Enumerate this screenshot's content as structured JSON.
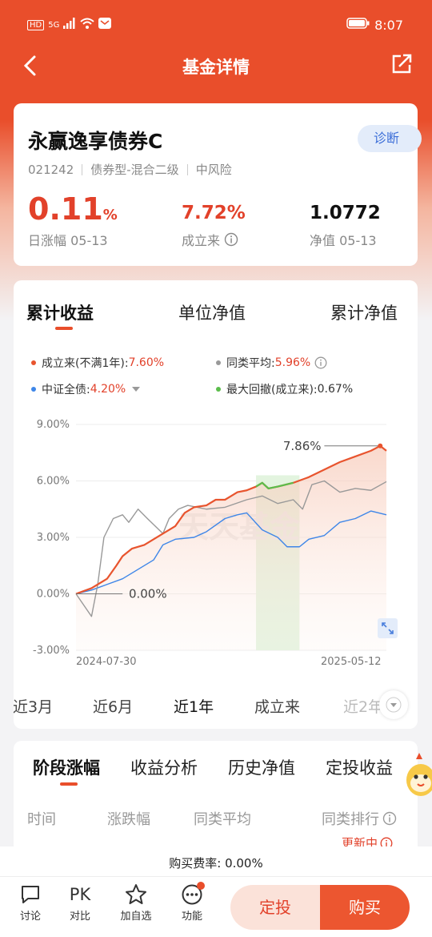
{
  "status": {
    "sim": "HD",
    "sig": "5G",
    "time": "8:07"
  },
  "nav": {
    "title": "基金详情"
  },
  "fund": {
    "name": "永赢逸享债券C",
    "badge": "诊断",
    "code": "021242",
    "type": "债券型-混合二级",
    "risk": "中风险",
    "daily_value": "0.11",
    "daily_unit": "%",
    "daily_label": "日涨幅 05-13",
    "since_value": "7.72%",
    "since_label": "成立来",
    "nav_value": "1.0772",
    "nav_label": "净值 05-13"
  },
  "chart_tabs": [
    "累计收益",
    "单位净值",
    "累计净值"
  ],
  "legend": [
    {
      "label": "成立来(不满1年):",
      "value": "7.60%",
      "color": "#e8542e"
    },
    {
      "label": "同类平均:",
      "value": "5.96%",
      "color": "#999999"
    },
    {
      "label": "中证全债:",
      "value": "4.20%",
      "color": "#3e86e8"
    },
    {
      "label": "最大回撤(成立来):",
      "value": "0.67%",
      "color": "#5bbd4b"
    }
  ],
  "chart_data": {
    "type": "line",
    "ylim": [
      -3,
      9
    ],
    "yticks": [
      "9.00%",
      "6.00%",
      "3.00%",
      "0.00%",
      "-3.00%"
    ],
    "x_start": "2024-07-30",
    "x_end": "2025-05-12",
    "watermark": "天天基金",
    "start_label": "0.00%",
    "peak_label": "7.86%",
    "series": [
      {
        "name": "成立来(不满1年)",
        "color": "#e8542e",
        "x": [
          0,
          0.05,
          0.1,
          0.13,
          0.15,
          0.18,
          0.22,
          0.28,
          0.32,
          0.35,
          0.38,
          0.42,
          0.45,
          0.48,
          0.5,
          0.52,
          0.55,
          0.58,
          0.6,
          0.62,
          0.65,
          0.7,
          0.75,
          0.8,
          0.85,
          0.9,
          0.95,
          0.98,
          1.0
        ],
        "y": [
          0,
          0.3,
          0.8,
          1.5,
          2.0,
          2.4,
          2.6,
          3.2,
          3.6,
          4.3,
          4.6,
          4.7,
          5.0,
          5.0,
          5.2,
          5.4,
          5.5,
          5.7,
          5.9,
          5.6,
          5.7,
          5.9,
          6.2,
          6.6,
          7.0,
          7.3,
          7.6,
          7.86,
          7.6
        ]
      },
      {
        "name": "同类平均",
        "color": "#999999",
        "x": [
          0,
          0.05,
          0.07,
          0.09,
          0.12,
          0.15,
          0.17,
          0.2,
          0.23,
          0.28,
          0.3,
          0.33,
          0.36,
          0.42,
          0.48,
          0.55,
          0.6,
          0.65,
          0.7,
          0.73,
          0.76,
          0.8,
          0.85,
          0.9,
          0.95,
          1.0
        ],
        "y": [
          0,
          -1.2,
          0.5,
          3.0,
          4.0,
          4.2,
          3.8,
          4.5,
          4.0,
          3.2,
          4.0,
          4.5,
          4.7,
          4.5,
          4.6,
          5.0,
          5.2,
          4.8,
          5.0,
          4.5,
          5.8,
          6.0,
          5.4,
          5.6,
          5.5,
          5.96
        ]
      },
      {
        "name": "中证全债",
        "color": "#3e86e8",
        "x": [
          0,
          0.05,
          0.1,
          0.15,
          0.2,
          0.25,
          0.28,
          0.32,
          0.38,
          0.42,
          0.48,
          0.52,
          0.55,
          0.6,
          0.65,
          0.68,
          0.72,
          0.75,
          0.8,
          0.85,
          0.9,
          0.95,
          1.0
        ],
        "y": [
          0,
          0.2,
          0.5,
          0.8,
          1.3,
          1.8,
          2.6,
          2.9,
          3.0,
          3.3,
          4.0,
          4.2,
          4.3,
          3.4,
          3.0,
          2.5,
          2.5,
          2.9,
          3.1,
          3.8,
          4.0,
          4.4,
          4.2
        ]
      }
    ]
  },
  "range_pills": [
    "近3月",
    "近6月",
    "近1年",
    "成立来",
    "近2年"
  ],
  "section_tabs": [
    "阶段涨幅",
    "收益分析",
    "历史净值",
    "定投收益"
  ],
  "table_headers": [
    "时间",
    "涨跌幅",
    "同类平均",
    "同类排行"
  ],
  "updating": "更新中",
  "fee": {
    "text": "购买费率: 0.00%"
  },
  "bottom": {
    "items": [
      "讨论",
      "对比",
      "加自选",
      "功能"
    ],
    "pk": "PK",
    "sip": "定投",
    "buy": "购买"
  }
}
